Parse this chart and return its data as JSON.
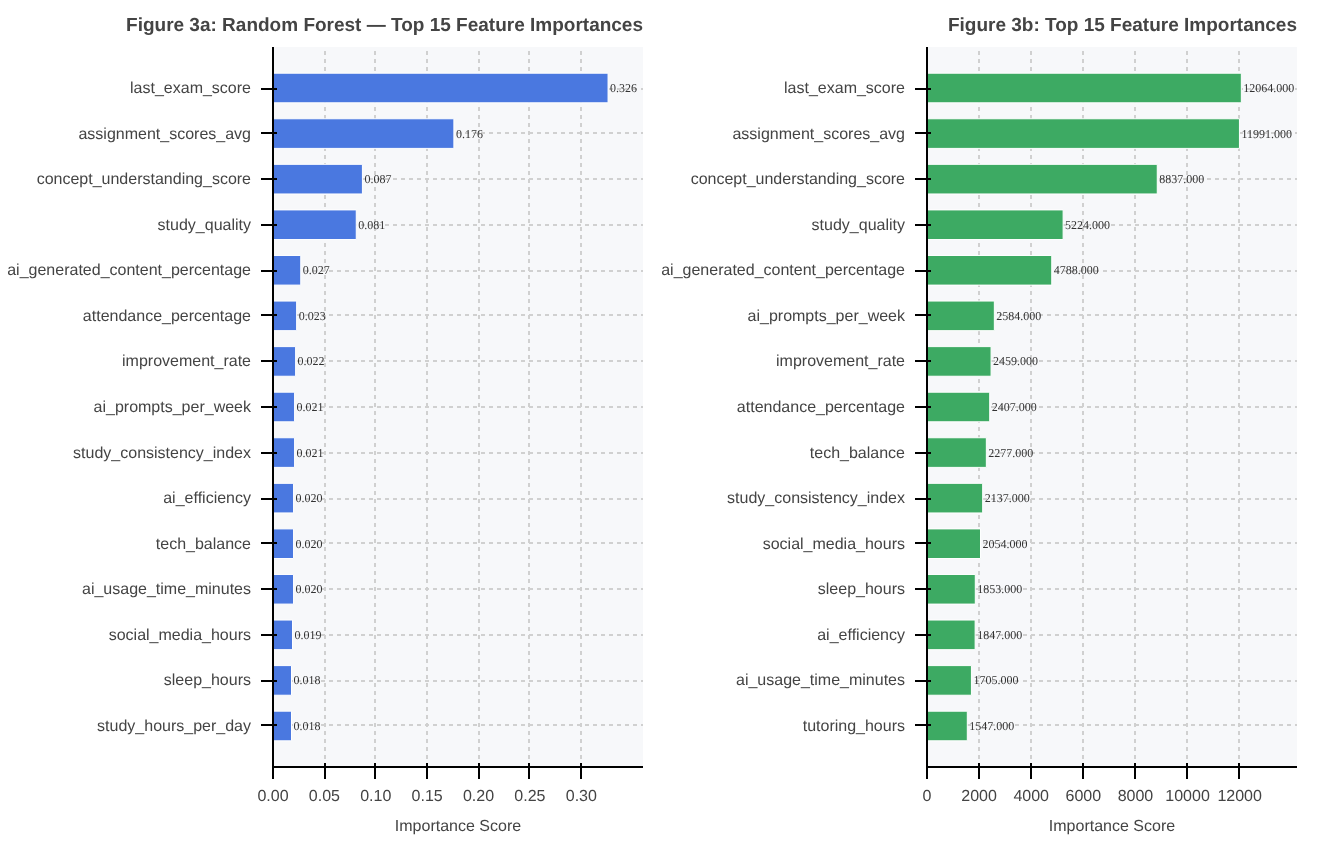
{
  "chart_data": [
    {
      "type": "bar",
      "orientation": "horizontal",
      "title": "Figure 3a: Random Forest — Top 15 Feature Importances",
      "xlabel": "Importance Score",
      "categories": [
        "last_exam_score",
        "assignment_scores_avg",
        "concept_understanding_score",
        "study_quality",
        "ai_generated_content_percentage",
        "attendance_percentage",
        "improvement_rate",
        "ai_prompts_per_week",
        "study_consistency_index",
        "ai_efficiency",
        "tech_balance",
        "ai_usage_time_minutes",
        "social_media_hours",
        "sleep_hours",
        "study_hours_per_day"
      ],
      "values": [
        0.326,
        0.176,
        0.087,
        0.081,
        0.027,
        0.023,
        0.022,
        0.021,
        0.021,
        0.02,
        0.02,
        0.02,
        0.019,
        0.018,
        0.018
      ],
      "value_labels": [
        "0.326",
        "0.176",
        "0.087",
        "0.081",
        "0.027",
        "0.023",
        "0.022",
        "0.021",
        "0.021",
        "0.020",
        "0.020",
        "0.020",
        "0.019",
        "0.018",
        "0.018"
      ],
      "color": "#4a78e0",
      "xlim": [
        0,
        0.36
      ],
      "xticks": [
        {
          "value": 0,
          "label": "0.00"
        },
        {
          "value": 0.05,
          "label": "0.05"
        },
        {
          "value": 0.1,
          "label": "0.10"
        },
        {
          "value": 0.15,
          "label": "0.15"
        },
        {
          "value": 0.2,
          "label": "0.20"
        },
        {
          "value": 0.25,
          "label": "0.25"
        },
        {
          "value": 0.3,
          "label": "0.30"
        }
      ],
      "grid": true
    },
    {
      "type": "bar",
      "orientation": "horizontal",
      "title": "Figure 3b: Top 15 Feature Importances",
      "xlabel": "Importance Score",
      "categories": [
        "last_exam_score",
        "assignment_scores_avg",
        "concept_understanding_score",
        "study_quality",
        "ai_generated_content_percentage",
        "ai_prompts_per_week",
        "improvement_rate",
        "attendance_percentage",
        "tech_balance",
        "study_consistency_index",
        "social_media_hours",
        "sleep_hours",
        "ai_efficiency",
        "ai_usage_time_minutes",
        "tutoring_hours"
      ],
      "values": [
        12064,
        11991,
        8837,
        5224,
        4788,
        2584,
        2459,
        2407,
        2277,
        2137,
        2054,
        1853,
        1847,
        1705,
        1547
      ],
      "value_labels": [
        "12064.000",
        "11991.000",
        "8837.000",
        "5224.000",
        "4788.000",
        "2584.000",
        "2459.000",
        "2407.000",
        "2277.000",
        "2137.000",
        "2054.000",
        "1853.000",
        "1847.000",
        "1705.000",
        "1547.000"
      ],
      "color": "#3daa63",
      "xlim": [
        0,
        14200
      ],
      "xticks": [
        0,
        2000,
        4000,
        6000,
        8000,
        10000,
        12000
      ],
      "grid": true
    }
  ]
}
